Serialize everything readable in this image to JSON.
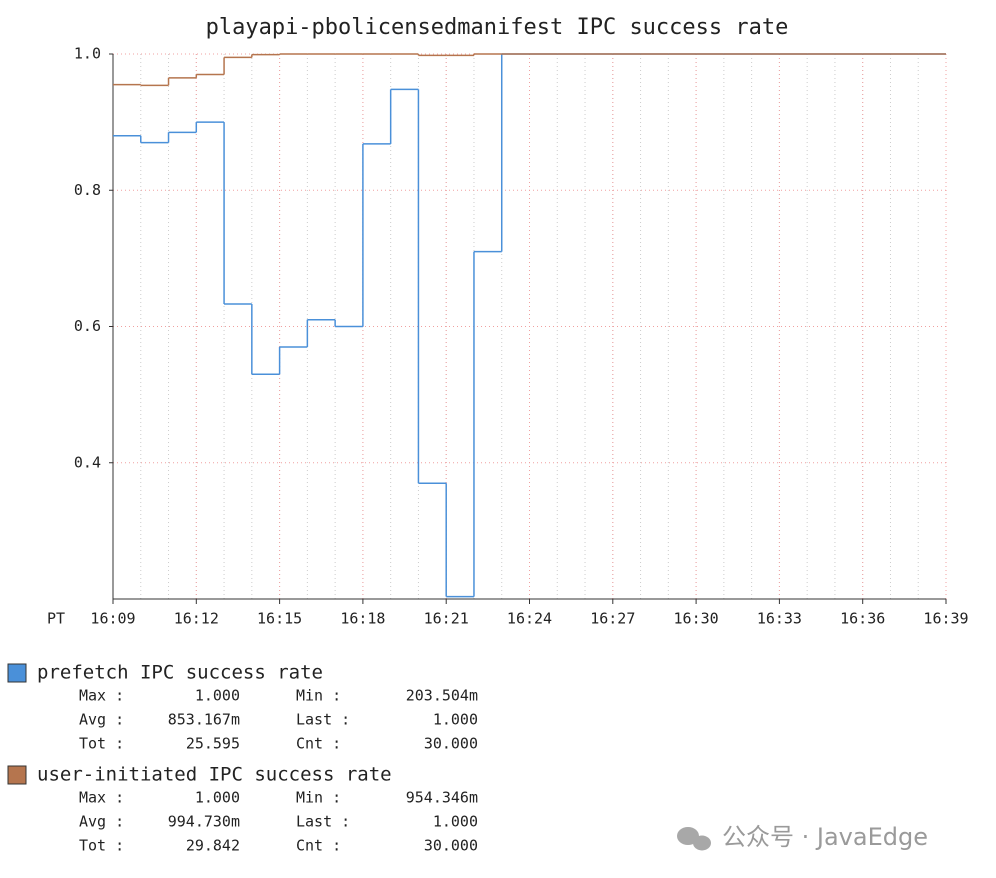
{
  "chart_data": {
    "type": "step",
    "title": "playapi-pbolicensedmanifest IPC success rate",
    "x_axis_prefix": "PT",
    "x": [
      "16:09",
      "16:10",
      "16:11",
      "16:12",
      "16:13",
      "16:14",
      "16:15",
      "16:16",
      "16:17",
      "16:18",
      "16:19",
      "16:20",
      "16:21",
      "16:22",
      "16:23",
      "16:24",
      "16:25",
      "16:26",
      "16:27",
      "16:28",
      "16:29",
      "16:30",
      "16:31",
      "16:32",
      "16:33",
      "16:34",
      "16:35",
      "16:36",
      "16:37",
      "16:38"
    ],
    "xlim": [
      "16:09",
      "16:39"
    ],
    "xticks": [
      "16:09",
      "16:12",
      "16:15",
      "16:18",
      "16:21",
      "16:24",
      "16:27",
      "16:30",
      "16:33",
      "16:36",
      "16:39"
    ],
    "ylim": [
      0.2,
      1.0
    ],
    "yticks": [
      0.4,
      0.6,
      0.8,
      {
        "value": 1.0,
        "label": "1.0"
      }
    ],
    "grid": true,
    "series": [
      {
        "name": "prefetch IPC success rate",
        "color": "#4a90d9",
        "values": [
          0.88,
          0.87,
          0.885,
          0.9,
          0.633,
          0.53,
          0.57,
          0.61,
          0.6,
          0.868,
          0.948,
          0.37,
          0.2035,
          0.71,
          1.0,
          1.0,
          1.0,
          1.0,
          1.0,
          1.0,
          1.0,
          1.0,
          1.0,
          1.0,
          1.0,
          1.0,
          1.0,
          1.0,
          1.0,
          1.0
        ],
        "stats": [
          [
            "Max :",
            "1.000",
            "Min  :",
            "203.504m"
          ],
          [
            "Avg :",
            "853.167m",
            "Last :",
            "1.000"
          ],
          [
            "Tot :",
            "25.595",
            "Cnt  :",
            "30.000"
          ]
        ]
      },
      {
        "name": "user-initiated IPC success rate",
        "color": "#b5754e",
        "values": [
          0.955,
          0.954,
          0.965,
          0.97,
          0.995,
          0.999,
          1.0,
          1.0,
          1.0,
          1.0,
          1.0,
          0.998,
          0.998,
          1.0,
          1.0,
          1.0,
          1.0,
          1.0,
          1.0,
          1.0,
          1.0,
          1.0,
          1.0,
          1.0,
          1.0,
          1.0,
          1.0,
          1.0,
          1.0,
          1.0
        ],
        "stats": [
          [
            "Max :",
            "1.000",
            "Min  :",
            "954.346m"
          ],
          [
            "Avg :",
            "994.730m",
            "Last :",
            "1.000"
          ],
          [
            "Tot :",
            "29.842",
            "Cnt  :",
            "30.000"
          ]
        ]
      }
    ]
  },
  "watermark": "公众号 · JavaEdge"
}
